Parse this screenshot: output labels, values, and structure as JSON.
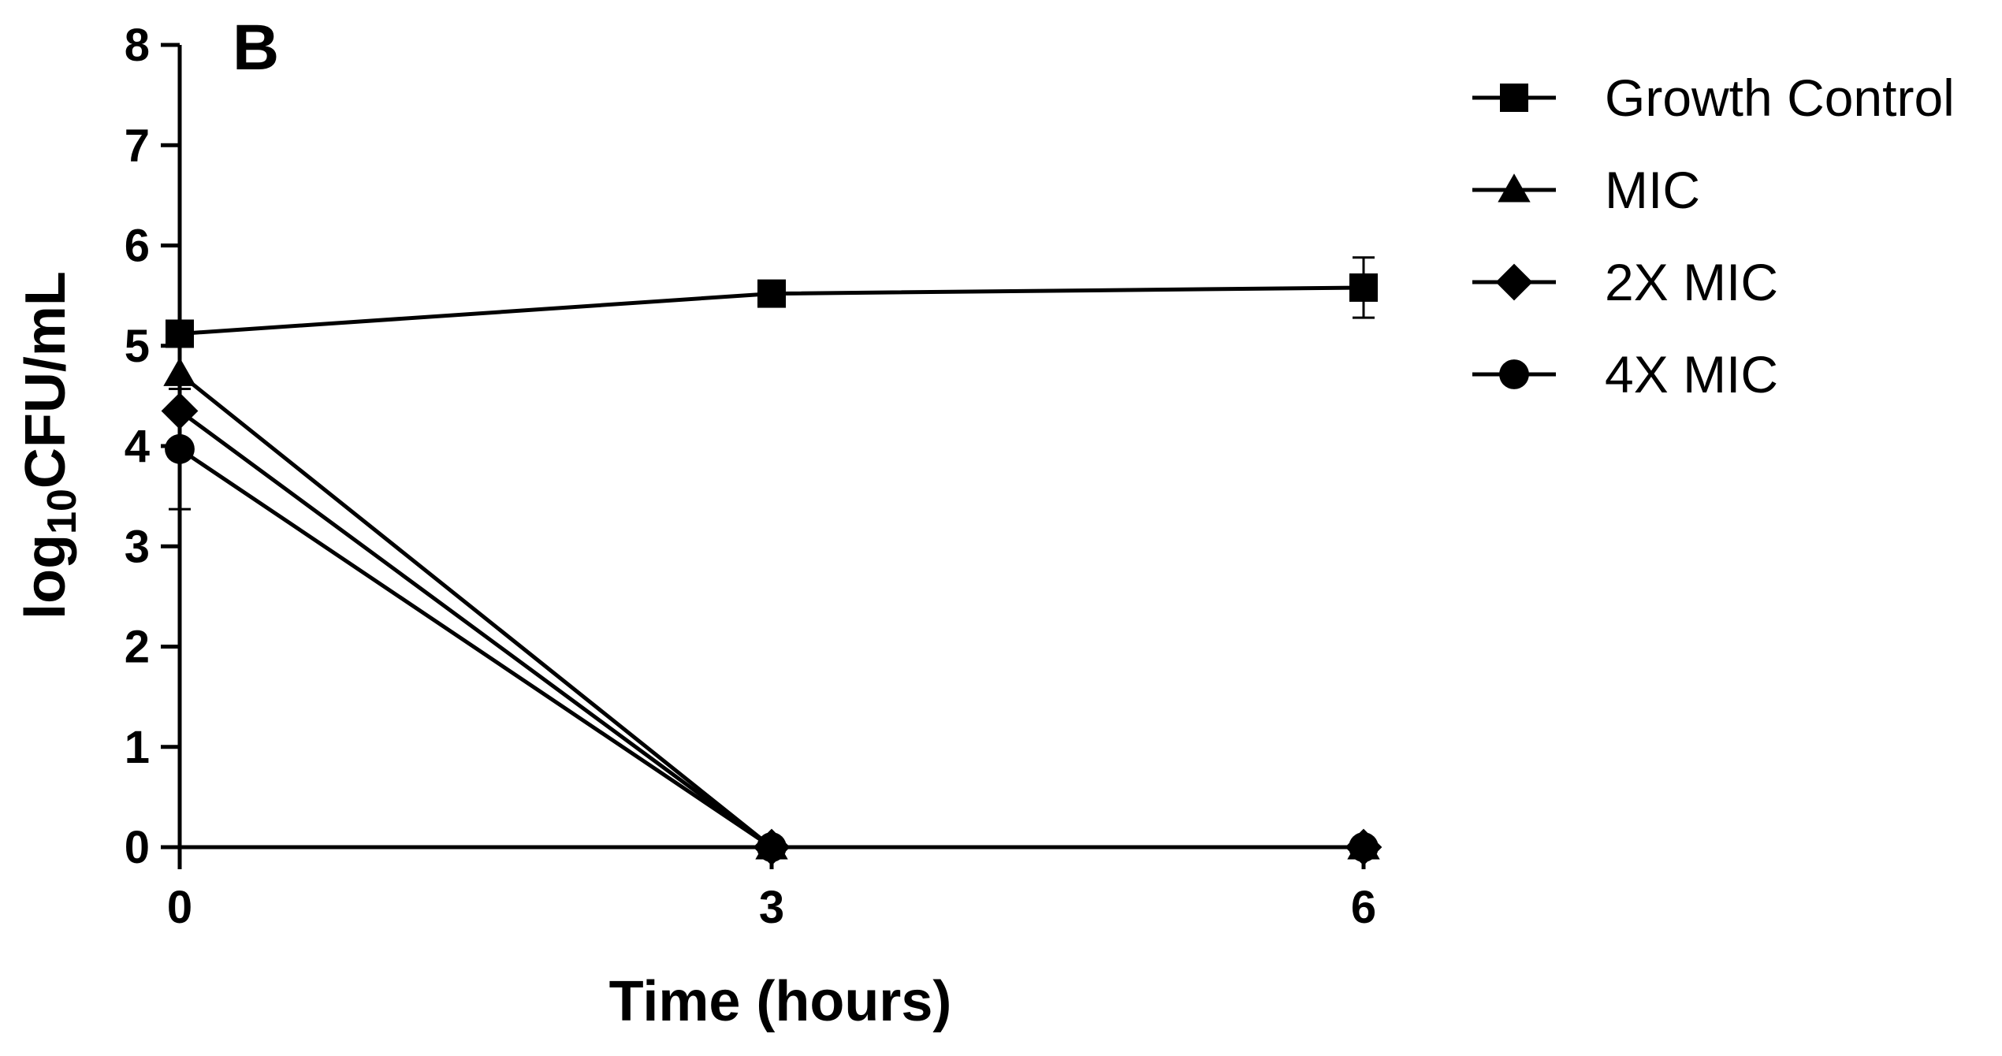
{
  "chart_data": {
    "type": "line",
    "panel_label": "B",
    "title": "",
    "xlabel": "Time (hours)",
    "ylabel_parts": {
      "pre": "log",
      "sub": "10",
      "post": "CFU/mL"
    },
    "x": [
      0,
      3,
      6
    ],
    "x_ticks": [
      "0",
      "3",
      "6"
    ],
    "xlim": [
      0,
      6
    ],
    "ylim": [
      0,
      8
    ],
    "y_ticks": [
      "0",
      "1",
      "2",
      "3",
      "4",
      "5",
      "6",
      "7",
      "8"
    ],
    "grid": false,
    "legend_position": "top-right",
    "series": [
      {
        "name": "Growth Control",
        "marker": "square",
        "values": [
          5.12,
          5.52,
          5.58
        ],
        "error": [
          0.0,
          0.0,
          0.3
        ]
      },
      {
        "name": "MIC",
        "marker": "triangle",
        "values": [
          4.72,
          0,
          0
        ],
        "error": [
          0.0,
          0,
          0
        ]
      },
      {
        "name": "2X MIC",
        "marker": "diamond",
        "values": [
          4.35,
          0,
          0
        ],
        "error": [
          0.0,
          0,
          0
        ]
      },
      {
        "name": "4X MIC",
        "marker": "circle",
        "values": [
          3.97,
          0,
          0
        ],
        "error": [
          0.6,
          0,
          0
        ]
      }
    ],
    "line_color": "#000000"
  }
}
